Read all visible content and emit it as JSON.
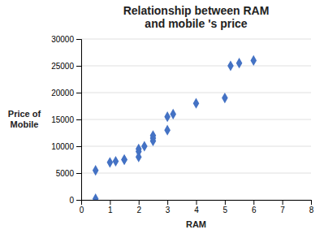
{
  "chart_data": {
    "type": "scatter",
    "title": "Relationship between RAM\nand mobile 's price",
    "xlabel": "RAM",
    "ylabel": "Price of\nMobile",
    "x": [
      0.5,
      0.5,
      1.0,
      1.2,
      1.5,
      1.5,
      2.0,
      2.0,
      2.0,
      2.2,
      2.5,
      2.5,
      2.5,
      3.0,
      3.0,
      3.2,
      4.0,
      5.0,
      5.2,
      5.5,
      6.0
    ],
    "values": [
      200,
      5500,
      7000,
      7200,
      7500,
      7500,
      8000,
      9000,
      9500,
      10000,
      11000,
      11500,
      12000,
      13000,
      15500,
      16000,
      18000,
      19000,
      25000,
      25500,
      26000
    ],
    "color": "#4472C4",
    "marker": "diamond",
    "xlim": [
      0,
      8
    ],
    "ylim": [
      0,
      30000
    ],
    "xticks": [
      0,
      1,
      2,
      3,
      4,
      5,
      6,
      7,
      8
    ],
    "yticks": [
      0,
      5000,
      10000,
      15000,
      20000,
      25000,
      30000
    ],
    "grid": true
  }
}
